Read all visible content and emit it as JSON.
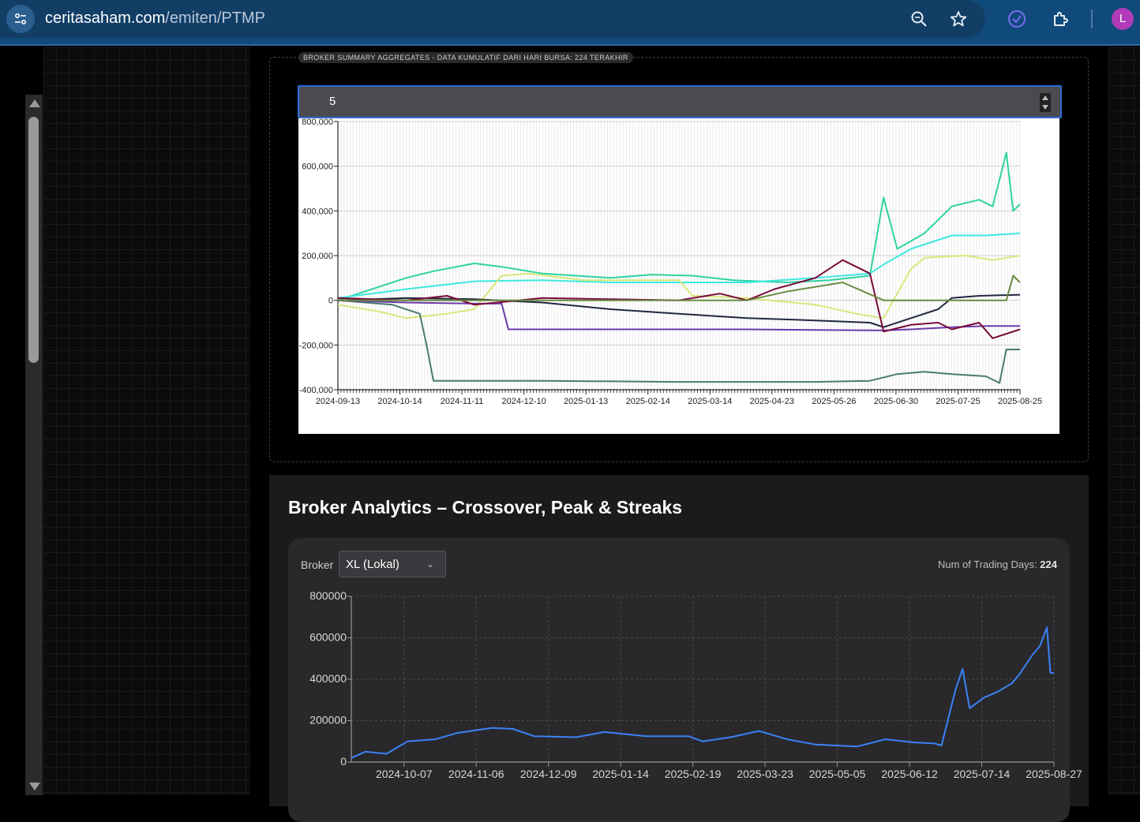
{
  "browser": {
    "url_domain": "ceritasaham.com",
    "url_path": "/emiten/PTMP",
    "avatar_letter": "L",
    "icons": [
      "site-info-icon",
      "zoom-icon",
      "star-icon",
      "extension-update-icon",
      "extensions-icon"
    ]
  },
  "aggregates": {
    "legend": "BROKER SUMMARY AGGREGATES - DATA KUMULATIF DARI HARI BURSA: 224 TERAKHIR",
    "top_n_value": "5"
  },
  "analytics": {
    "title": "Broker Analytics – Crossover, Peak & Streaks",
    "broker_label": "Broker",
    "broker_selected": "XL (Lokal)",
    "days_label": "Num of Trading Days:",
    "days_value": "224"
  },
  "chart_data": [
    {
      "type": "line",
      "title": "",
      "ylim": [
        -400000,
        800000
      ],
      "y_ticks": [
        -400000,
        -200000,
        0,
        200000,
        400000,
        600000,
        800000
      ],
      "y_tick_labels": [
        "-400,000",
        "-200,000",
        "0",
        "200,000",
        "400,000",
        "600,000",
        "800,000"
      ],
      "x_tick_labels": [
        "2024-09-13",
        "2024-10-14",
        "2024-11-11",
        "2024-12-10",
        "2025-01-13",
        "2025-02-14",
        "2025-03-14",
        "2025-04-23",
        "2025-05-26",
        "2025-06-30",
        "2025-07-25",
        "2025-08-25"
      ],
      "grid": true,
      "series": [
        {
          "color": "#2dd3a0",
          "points": [
            [
              0,
              0
            ],
            [
              0.06,
              60000
            ],
            [
              0.1,
              100000
            ],
            [
              0.14,
              130000
            ],
            [
              0.2,
              165000
            ],
            [
              0.24,
              150000
            ],
            [
              0.3,
              120000
            ],
            [
              0.4,
              100000
            ],
            [
              0.46,
              115000
            ],
            [
              0.52,
              110000
            ],
            [
              0.58,
              90000
            ],
            [
              0.66,
              80000
            ],
            [
              0.72,
              90000
            ],
            [
              0.78,
              110000
            ],
            [
              0.8,
              460000
            ],
            [
              0.82,
              230000
            ],
            [
              0.86,
              300000
            ],
            [
              0.9,
              420000
            ],
            [
              0.94,
              450000
            ],
            [
              0.96,
              420000
            ],
            [
              0.98,
              660000
            ],
            [
              0.99,
              400000
            ],
            [
              1,
              430000
            ]
          ]
        },
        {
          "color": "#3ee8e0",
          "points": [
            [
              0,
              10000
            ],
            [
              0.1,
              50000
            ],
            [
              0.2,
              85000
            ],
            [
              0.3,
              90000
            ],
            [
              0.4,
              80000
            ],
            [
              0.5,
              80000
            ],
            [
              0.6,
              80000
            ],
            [
              0.7,
              100000
            ],
            [
              0.78,
              120000
            ],
            [
              0.8,
              160000
            ],
            [
              0.84,
              230000
            ],
            [
              0.9,
              290000
            ],
            [
              0.95,
              290000
            ],
            [
              1,
              300000
            ]
          ]
        },
        {
          "color": "#d8e87a",
          "points": [
            [
              0,
              -20000
            ],
            [
              0.06,
              -50000
            ],
            [
              0.1,
              -80000
            ],
            [
              0.16,
              -60000
            ],
            [
              0.2,
              -40000
            ],
            [
              0.24,
              110000
            ],
            [
              0.28,
              120000
            ],
            [
              0.36,
              90000
            ],
            [
              0.5,
              90000
            ],
            [
              0.52,
              20000
            ],
            [
              0.6,
              10000
            ],
            [
              0.7,
              -20000
            ],
            [
              0.76,
              -60000
            ],
            [
              0.8,
              -80000
            ],
            [
              0.84,
              140000
            ],
            [
              0.86,
              190000
            ],
            [
              0.92,
              200000
            ],
            [
              0.96,
              180000
            ],
            [
              1,
              200000
            ]
          ]
        },
        {
          "color": "#4a7a70",
          "points": [
            [
              0,
              0
            ],
            [
              0.08,
              -20000
            ],
            [
              0.12,
              -60000
            ],
            [
              0.13,
              -200000
            ],
            [
              0.14,
              -360000
            ],
            [
              0.3,
              -360000
            ],
            [
              0.5,
              -365000
            ],
            [
              0.7,
              -365000
            ],
            [
              0.78,
              -360000
            ],
            [
              0.82,
              -330000
            ],
            [
              0.86,
              -320000
            ],
            [
              0.9,
              -330000
            ],
            [
              0.95,
              -340000
            ],
            [
              0.97,
              -370000
            ],
            [
              0.98,
              -220000
            ],
            [
              1,
              -220000
            ]
          ]
        },
        {
          "color": "#6b3aa8",
          "points": [
            [
              0,
              0
            ],
            [
              0.1,
              -10000
            ],
            [
              0.2,
              -15000
            ],
            [
              0.24,
              -15000
            ],
            [
              0.25,
              -130000
            ],
            [
              0.3,
              -130000
            ],
            [
              0.4,
              -130000
            ],
            [
              0.6,
              -130000
            ],
            [
              0.8,
              -135000
            ],
            [
              0.84,
              -130000
            ],
            [
              0.9,
              -120000
            ],
            [
              0.95,
              -115000
            ],
            [
              1,
              -115000
            ]
          ]
        },
        {
          "color": "#1f2840",
          "points": [
            [
              0,
              0
            ],
            [
              0.1,
              10000
            ],
            [
              0.2,
              5000
            ],
            [
              0.3,
              -10000
            ],
            [
              0.4,
              -40000
            ],
            [
              0.5,
              -60000
            ],
            [
              0.6,
              -80000
            ],
            [
              0.7,
              -90000
            ],
            [
              0.78,
              -100000
            ],
            [
              0.8,
              -120000
            ],
            [
              0.84,
              -80000
            ],
            [
              0.88,
              -40000
            ],
            [
              0.9,
              10000
            ],
            [
              0.94,
              20000
            ],
            [
              1,
              25000
            ]
          ]
        },
        {
          "color": "#7a0a3a",
          "points": [
            [
              0,
              10000
            ],
            [
              0.1,
              0
            ],
            [
              0.16,
              20000
            ],
            [
              0.2,
              -20000
            ],
            [
              0.3,
              10000
            ],
            [
              0.4,
              5000
            ],
            [
              0.5,
              0
            ],
            [
              0.56,
              30000
            ],
            [
              0.6,
              0
            ],
            [
              0.64,
              50000
            ],
            [
              0.7,
              100000
            ],
            [
              0.74,
              180000
            ],
            [
              0.78,
              120000
            ],
            [
              0.8,
              -140000
            ],
            [
              0.84,
              -110000
            ],
            [
              0.88,
              -100000
            ],
            [
              0.9,
              -130000
            ],
            [
              0.94,
              -100000
            ],
            [
              0.96,
              -170000
            ],
            [
              1,
              -130000
            ]
          ]
        },
        {
          "color": "#6a8a40",
          "points": [
            [
              0,
              0
            ],
            [
              0.2,
              0
            ],
            [
              0.4,
              0
            ],
            [
              0.6,
              0
            ],
            [
              0.66,
              40000
            ],
            [
              0.7,
              60000
            ],
            [
              0.74,
              80000
            ],
            [
              0.8,
              0
            ],
            [
              0.9,
              0
            ],
            [
              0.98,
              0
            ],
            [
              0.99,
              110000
            ],
            [
              1,
              80000
            ]
          ]
        }
      ]
    },
    {
      "type": "line",
      "title": "",
      "ylim": [
        0,
        800000
      ],
      "y_ticks": [
        0,
        200000,
        400000,
        600000,
        800000
      ],
      "y_tick_labels": [
        "0",
        "200000",
        "400000",
        "600000",
        "800000"
      ],
      "x_tick_labels": [
        "2024-10-07",
        "2024-11-06",
        "2024-12-09",
        "2025-01-14",
        "2025-02-19",
        "2025-03-23",
        "2025-05-05",
        "2025-06-12",
        "2025-07-14",
        "2025-08-27"
      ],
      "grid": true,
      "series": [
        {
          "name": "XL (Lokal)",
          "color": "#3b82f6",
          "points": [
            [
              0,
              20000
            ],
            [
              0.02,
              50000
            ],
            [
              0.05,
              40000
            ],
            [
              0.08,
              100000
            ],
            [
              0.12,
              110000
            ],
            [
              0.15,
              140000
            ],
            [
              0.2,
              165000
            ],
            [
              0.23,
              160000
            ],
            [
              0.26,
              125000
            ],
            [
              0.32,
              120000
            ],
            [
              0.36,
              145000
            ],
            [
              0.42,
              125000
            ],
            [
              0.48,
              125000
            ],
            [
              0.5,
              100000
            ],
            [
              0.54,
              120000
            ],
            [
              0.58,
              150000
            ],
            [
              0.62,
              110000
            ],
            [
              0.66,
              85000
            ],
            [
              0.72,
              75000
            ],
            [
              0.76,
              110000
            ],
            [
              0.8,
              95000
            ],
            [
              0.83,
              90000
            ],
            [
              0.84,
              80000
            ],
            [
              0.86,
              350000
            ],
            [
              0.87,
              450000
            ],
            [
              0.88,
              260000
            ],
            [
              0.9,
              310000
            ],
            [
              0.92,
              340000
            ],
            [
              0.94,
              380000
            ],
            [
              0.95,
              420000
            ],
            [
              0.97,
              520000
            ],
            [
              0.98,
              560000
            ],
            [
              0.99,
              650000
            ],
            [
              0.995,
              430000
            ],
            [
              1,
              430000
            ]
          ]
        }
      ]
    }
  ]
}
